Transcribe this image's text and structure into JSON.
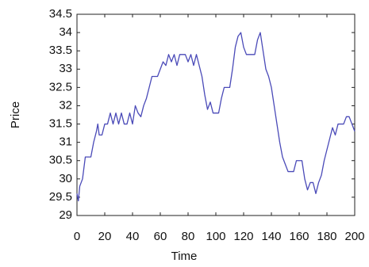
{
  "chart_data": {
    "type": "line",
    "xlabel": "Time",
    "ylabel": "Price",
    "x": [
      0,
      1,
      2,
      4,
      5,
      6,
      10,
      12,
      14,
      15,
      16,
      18,
      20,
      22,
      24,
      26,
      28,
      30,
      32,
      34,
      36,
      38,
      40,
      42,
      44,
      46,
      48,
      50,
      52,
      54,
      58,
      60,
      62,
      64,
      66,
      68,
      70,
      72,
      74,
      78,
      80,
      82,
      84,
      86,
      88,
      90,
      92,
      94,
      96,
      98,
      102,
      104,
      106,
      110,
      112,
      114,
      116,
      118,
      120,
      122,
      128,
      130,
      132,
      134,
      136,
      138,
      140,
      142,
      144,
      146,
      148,
      150,
      152,
      156,
      158,
      162,
      164,
      166,
      168,
      170,
      172,
      174,
      176,
      178,
      180,
      182,
      184,
      186,
      188,
      192,
      194,
      196,
      198,
      200
    ],
    "values": [
      29.6,
      29.4,
      29.8,
      30.0,
      30.3,
      30.6,
      30.6,
      31.0,
      31.3,
      31.5,
      31.2,
      31.2,
      31.5,
      31.5,
      31.8,
      31.5,
      31.8,
      31.5,
      31.8,
      31.5,
      31.5,
      31.8,
      31.5,
      32.0,
      31.8,
      31.7,
      32.0,
      32.2,
      32.5,
      32.8,
      32.8,
      33.0,
      33.2,
      33.1,
      33.4,
      33.2,
      33.4,
      33.1,
      33.4,
      33.4,
      33.2,
      33.4,
      33.1,
      33.4,
      33.1,
      32.8,
      32.3,
      31.9,
      32.1,
      31.8,
      31.8,
      32.2,
      32.5,
      32.5,
      33.0,
      33.6,
      33.9,
      34.0,
      33.6,
      33.4,
      33.4,
      33.8,
      34.0,
      33.5,
      33.0,
      32.8,
      32.5,
      32.0,
      31.5,
      31.0,
      30.6,
      30.4,
      30.2,
      30.2,
      30.5,
      30.5,
      30.0,
      29.7,
      29.9,
      29.9,
      29.6,
      29.9,
      30.1,
      30.5,
      30.8,
      31.1,
      31.4,
      31.2,
      31.5,
      31.5,
      31.7,
      31.7,
      31.5,
      31.3
    ],
    "color": "#4a4ab8",
    "xlim": [
      0,
      200
    ],
    "xticks": [
      0,
      20,
      40,
      60,
      80,
      100,
      120,
      140,
      160,
      180,
      200
    ],
    "ylim": [
      29,
      34.5
    ],
    "yticks": [
      29,
      29.5,
      30,
      30.5,
      31,
      31.5,
      32,
      32.5,
      33,
      33.5,
      34,
      34.5
    ]
  }
}
